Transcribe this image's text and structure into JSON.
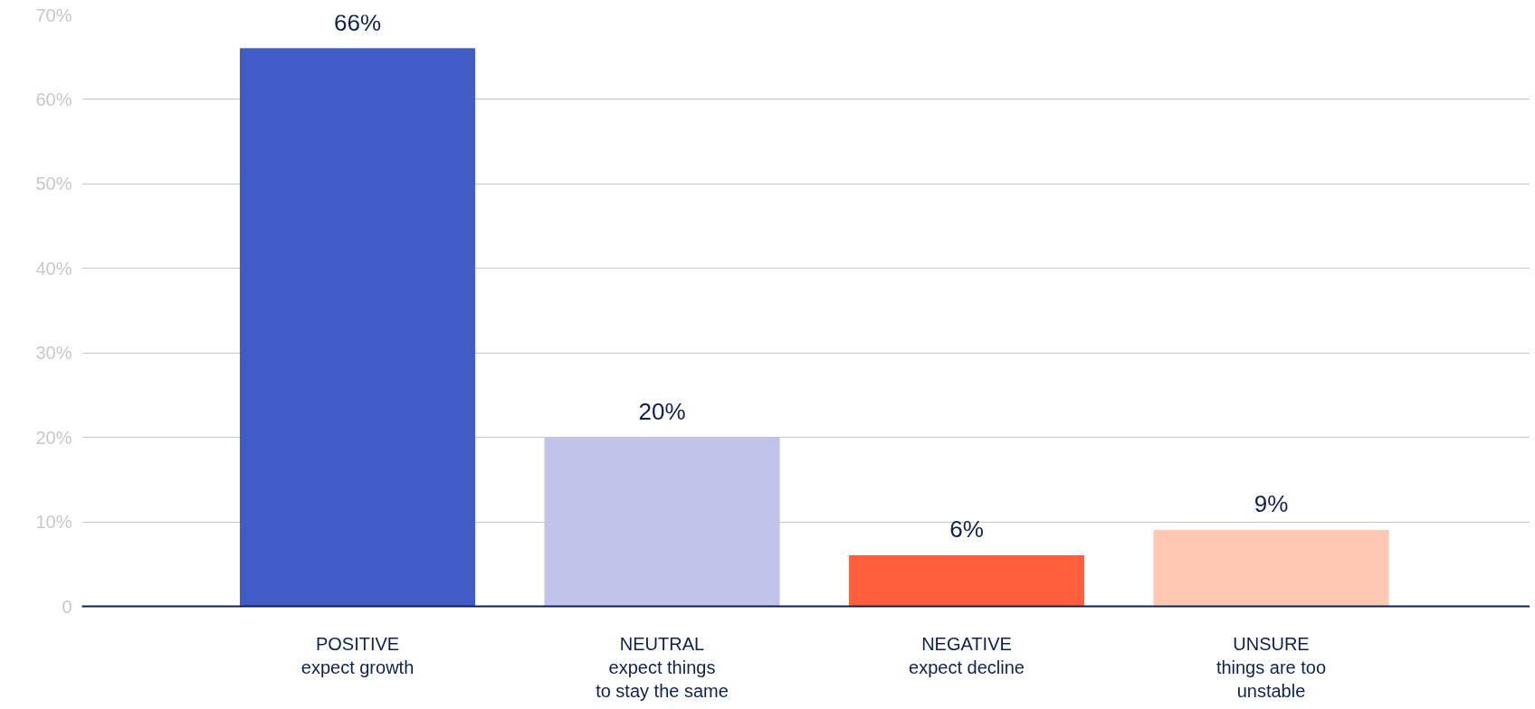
{
  "chart_data": {
    "type": "bar",
    "categories": [
      "POSITIVE\nexpect growth",
      "NEUTRAL\nexpect things\nto stay the same",
      "NEGATIVE\nexpect decline",
      "UNSURE\nthings are too\nunstable"
    ],
    "values": [
      66,
      20,
      6,
      9
    ],
    "colors": [
      "#425cc7",
      "#c1c3eb",
      "#ff5f3c",
      "#fec8b3"
    ],
    "ylim": [
      0,
      70
    ],
    "yticks": [
      0,
      {
        "value": 10,
        "label": "10%"
      },
      {
        "value": 20,
        "label": "20%"
      },
      {
        "value": 30,
        "label": "30%"
      },
      {
        "value": 40,
        "label": "40%"
      },
      {
        "value": 50,
        "label": "50%"
      },
      {
        "value": 60,
        "label": "60%"
      },
      {
        "value": 70,
        "label": "70%"
      }
    ],
    "value_labels": [
      "66%",
      "20%",
      "6%",
      "9%"
    ],
    "grid": "y"
  }
}
